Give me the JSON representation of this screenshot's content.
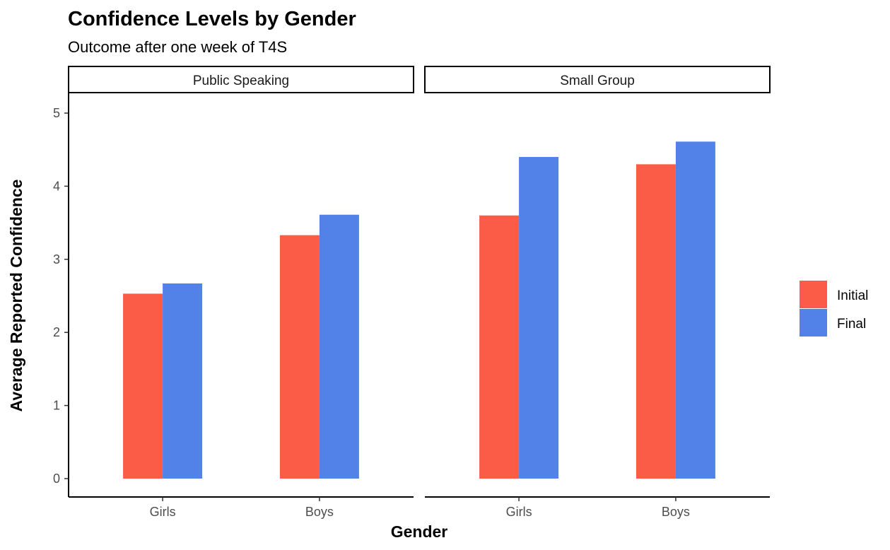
{
  "chart_data": {
    "type": "bar",
    "title": "Confidence Levels by Gender",
    "subtitle": "Outcome after one week of T4S",
    "xlabel": "Gender",
    "ylabel": "Average Reported Confidence",
    "ylim": [
      0,
      5.25
    ],
    "yticks": [
      "0",
      "1",
      "2",
      "3",
      "4",
      "5"
    ],
    "grid": false,
    "legend_position": "right",
    "categories": [
      "Girls",
      "Boys"
    ],
    "panels": [
      {
        "name": "Public Speaking",
        "series": [
          {
            "name": "Initial",
            "values": [
              2.53,
              3.33
            ]
          },
          {
            "name": "Final",
            "values": [
              2.67,
              3.61
            ]
          }
        ]
      },
      {
        "name": "Small Group",
        "series": [
          {
            "name": "Initial",
            "values": [
              3.6,
              4.3
            ]
          },
          {
            "name": "Final",
            "values": [
              4.4,
              4.61
            ]
          }
        ]
      }
    ],
    "legend": [
      {
        "name": "Initial",
        "color": "#fa5c47"
      },
      {
        "name": "Final",
        "color": "#5282e8"
      }
    ],
    "colors": {
      "Initial": "#fa5c47",
      "Final": "#5282e8"
    }
  }
}
